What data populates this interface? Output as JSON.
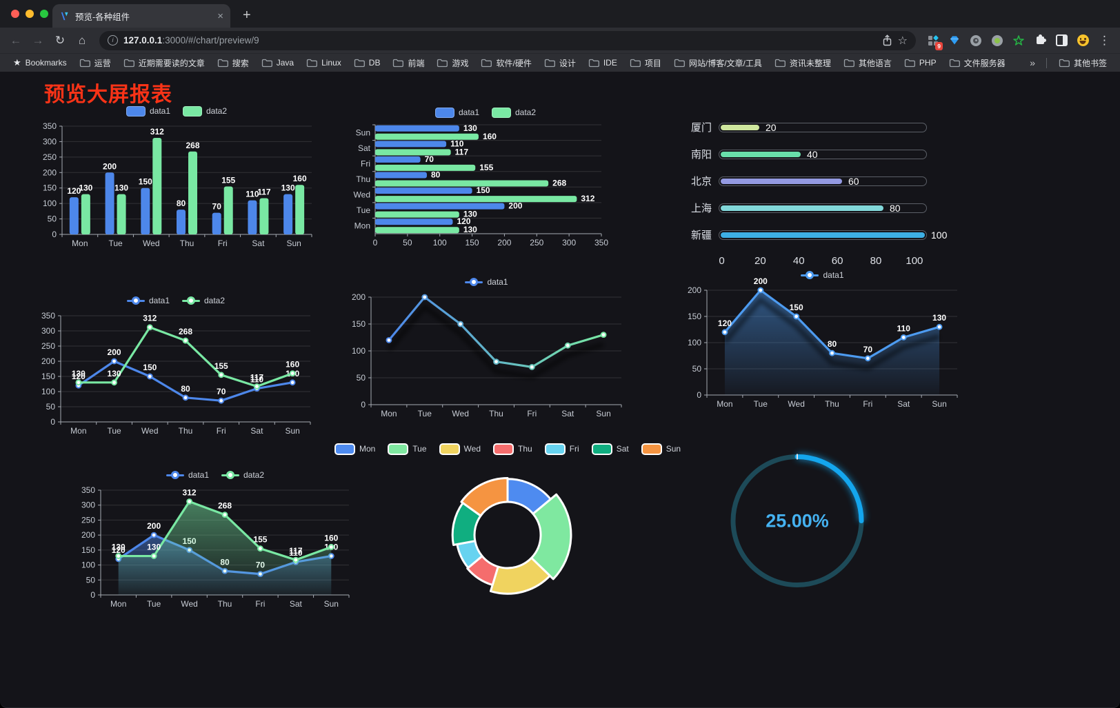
{
  "browser": {
    "tab_title": "预览-各种组件",
    "close_glyph": "×",
    "newtab_glyph": "+",
    "url_host": "127.0.0.1",
    "url_rest": ":3000/#/chart/preview/9",
    "badge_count": "9",
    "menu_glyph": "⋮"
  },
  "bookmark_bar": {
    "bookmarks_label": "Bookmarks",
    "items": [
      "运营",
      "近期需要读的文章",
      "搜索",
      "Java",
      "Linux",
      "DB",
      "前端",
      "游戏",
      "软件/硬件",
      "设计",
      "IDE",
      "项目",
      "网站/博客/文章/工具",
      "资讯未整理",
      "其他语言",
      "PHP",
      "文件服务器"
    ],
    "overflow_chevron": "»",
    "other_label": "其他书签"
  },
  "page": {
    "title": "预览大屏报表"
  },
  "chart_data": {
    "weekly_bar": {
      "type": "bar",
      "categories": [
        "Mon",
        "Tue",
        "Wed",
        "Thu",
        "Fri",
        "Sat",
        "Sun"
      ],
      "series": [
        {
          "name": "data1",
          "color": "#4d87ea",
          "values": [
            120,
            200,
            150,
            80,
            70,
            110,
            130
          ]
        },
        {
          "name": "data2",
          "color": "#79e8a3",
          "values": [
            130,
            130,
            312,
            268,
            155,
            117,
            160
          ]
        }
      ],
      "ylim": [
        0,
        350
      ],
      "ytick": 50,
      "value_labels": true,
      "legend_position": "top",
      "grid": true
    },
    "weekly_hbar": {
      "type": "bar-horizontal",
      "categories": [
        "Mon",
        "Tue",
        "Wed",
        "Thu",
        "Fri",
        "Sat",
        "Sun"
      ],
      "series": [
        {
          "name": "data1",
          "color": "#4d87ea",
          "values": [
            120,
            200,
            150,
            80,
            70,
            110,
            130
          ]
        },
        {
          "name": "data2",
          "color": "#79e8a3",
          "values": [
            130,
            130,
            312,
            268,
            155,
            117,
            160
          ]
        }
      ],
      "xlim": [
        0,
        350
      ],
      "xtick": 50,
      "value_labels": true,
      "legend_position": "top",
      "grid": true
    },
    "city_progress": {
      "type": "progress",
      "max": 100,
      "ticks": [
        0,
        20,
        40,
        60,
        80,
        100
      ],
      "items": [
        {
          "label": "厦门",
          "value": 20,
          "color": "#cfe79e"
        },
        {
          "label": "南阳",
          "value": 40,
          "color": "#69dfaa"
        },
        {
          "label": "北京",
          "value": 60,
          "color": "#949ae2"
        },
        {
          "label": "上海",
          "value": 80,
          "color": "#82d8da"
        },
        {
          "label": "新疆",
          "value": 100,
          "color": "#3dafe4"
        }
      ]
    },
    "weekly_line": {
      "type": "line",
      "categories": [
        "Mon",
        "Tue",
        "Wed",
        "Thu",
        "Fri",
        "Sat",
        "Sun"
      ],
      "series": [
        {
          "name": "data1",
          "color": "#4d87ea",
          "values": [
            120,
            200,
            150,
            80,
            70,
            110,
            130
          ]
        },
        {
          "name": "data2",
          "color": "#79e8a3",
          "values": [
            130,
            130,
            312,
            268,
            155,
            117,
            160
          ]
        }
      ],
      "ylim": [
        0,
        350
      ],
      "ytick": 50,
      "value_labels": true,
      "legend_position": "top",
      "grid": true
    },
    "gradient_line": {
      "type": "line",
      "categories": [
        "Mon",
        "Tue",
        "Wed",
        "Thu",
        "Fri",
        "Sat",
        "Sun"
      ],
      "series": [
        {
          "name": "data1",
          "color": "#4d87ea",
          "color2": "#79e8a3",
          "gradient": true,
          "values": [
            120,
            200,
            150,
            80,
            70,
            110,
            130
          ]
        }
      ],
      "ylim": [
        0,
        200
      ],
      "ytick": 50,
      "value_labels": false,
      "shadow": true,
      "legend_position": "top",
      "grid": true
    },
    "area_line": {
      "type": "line",
      "categories": [
        "Mon",
        "Tue",
        "Wed",
        "Thu",
        "Fri",
        "Sat",
        "Sun"
      ],
      "series": [
        {
          "name": "data1",
          "color": "#4d9bf0",
          "area": true,
          "values": [
            120,
            200,
            150,
            80,
            70,
            110,
            130
          ]
        }
      ],
      "ylim": [
        0,
        200
      ],
      "ytick": 50,
      "value_labels": true,
      "shadow": true,
      "legend_position": "top",
      "grid": true
    },
    "weekly_line_area": {
      "type": "line",
      "categories": [
        "Mon",
        "Tue",
        "Wed",
        "Thu",
        "Fri",
        "Sat",
        "Sun"
      ],
      "series": [
        {
          "name": "data1",
          "color": "#4d87ea",
          "area": true,
          "values": [
            120,
            200,
            150,
            80,
            70,
            110,
            130
          ]
        },
        {
          "name": "data2",
          "color": "#79e8a3",
          "area": true,
          "values": [
            130,
            130,
            312,
            268,
            155,
            117,
            160
          ]
        }
      ],
      "ylim": [
        0,
        350
      ],
      "ytick": 50,
      "value_labels": true,
      "legend_position": "top",
      "grid": true
    },
    "weekly_pie": {
      "type": "pie",
      "legend_position": "top",
      "items": [
        {
          "label": "Mon",
          "value": 120,
          "color": "#4e8bf0"
        },
        {
          "label": "Tue",
          "value": 200,
          "color": "#7fe8a0"
        },
        {
          "label": "Wed",
          "value": 150,
          "color": "#f0d35f"
        },
        {
          "label": "Thu",
          "value": 80,
          "color": "#f56d6d"
        },
        {
          "label": "Fri",
          "value": 70,
          "color": "#67d3f0"
        },
        {
          "label": "Sat",
          "value": 110,
          "color": "#10ae80"
        },
        {
          "label": "Sun",
          "value": 130,
          "color": "#f59441"
        }
      ]
    },
    "percent_gauge": {
      "type": "gauge",
      "value": 25,
      "max": 100,
      "label": "25.00%",
      "color": "#14a6ee",
      "track_color": "#1d4a58",
      "text_color": "#45b2f1"
    }
  }
}
